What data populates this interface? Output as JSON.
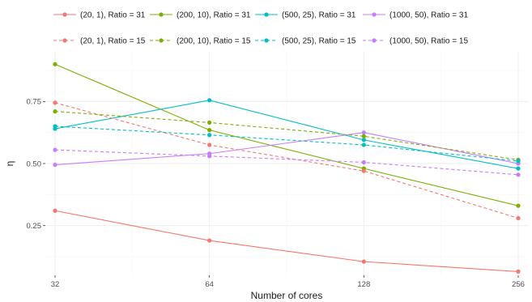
{
  "chart_data": {
    "type": "line",
    "xlabel": "Number of cores",
    "ylabel": "η",
    "x": [
      32,
      64,
      128,
      256
    ],
    "x_scale": "log2",
    "ylim": [
      0.05,
      0.95
    ],
    "y_ticks": [
      0.25,
      0.5,
      0.75
    ],
    "y_tick_labels": [
      "0.25",
      "0.50",
      "0.75"
    ],
    "x_tick_labels": [
      "32",
      "64",
      "128",
      "256"
    ],
    "grid": true,
    "legend_position": "top",
    "series": [
      {
        "name": "(20, 1), Ratio = 31",
        "color": "#F8766D",
        "dash": "solid",
        "values": [
          0.31,
          0.19,
          0.105,
          0.065
        ]
      },
      {
        "name": "(200, 10), Ratio = 31",
        "color": "#7CAE00",
        "dash": "solid",
        "values": [
          0.9,
          0.635,
          0.48,
          0.33
        ]
      },
      {
        "name": "(500, 25), Ratio = 31",
        "color": "#00BFC4",
        "dash": "solid",
        "values": [
          0.64,
          0.755,
          0.595,
          0.48
        ]
      },
      {
        "name": "(1000, 50), Ratio = 31",
        "color": "#C77CFF",
        "dash": "solid",
        "values": [
          0.495,
          0.54,
          0.625,
          0.5
        ]
      },
      {
        "name": "(20, 1), Ratio = 15",
        "color": "#F8766D",
        "dash": "dashed",
        "values": [
          0.745,
          0.575,
          0.47,
          0.28
        ]
      },
      {
        "name": "(200, 10), Ratio = 15",
        "color": "#7CAE00",
        "dash": "dashed",
        "values": [
          0.71,
          0.665,
          0.61,
          0.515
        ]
      },
      {
        "name": "(500, 25), Ratio = 15",
        "color": "#00BFC4",
        "dash": "dashed",
        "values": [
          0.65,
          0.615,
          0.575,
          0.51
        ]
      },
      {
        "name": "(1000, 50), Ratio = 15",
        "color": "#C77CFF",
        "dash": "dashed",
        "values": [
          0.555,
          0.53,
          0.505,
          0.455
        ]
      }
    ]
  }
}
